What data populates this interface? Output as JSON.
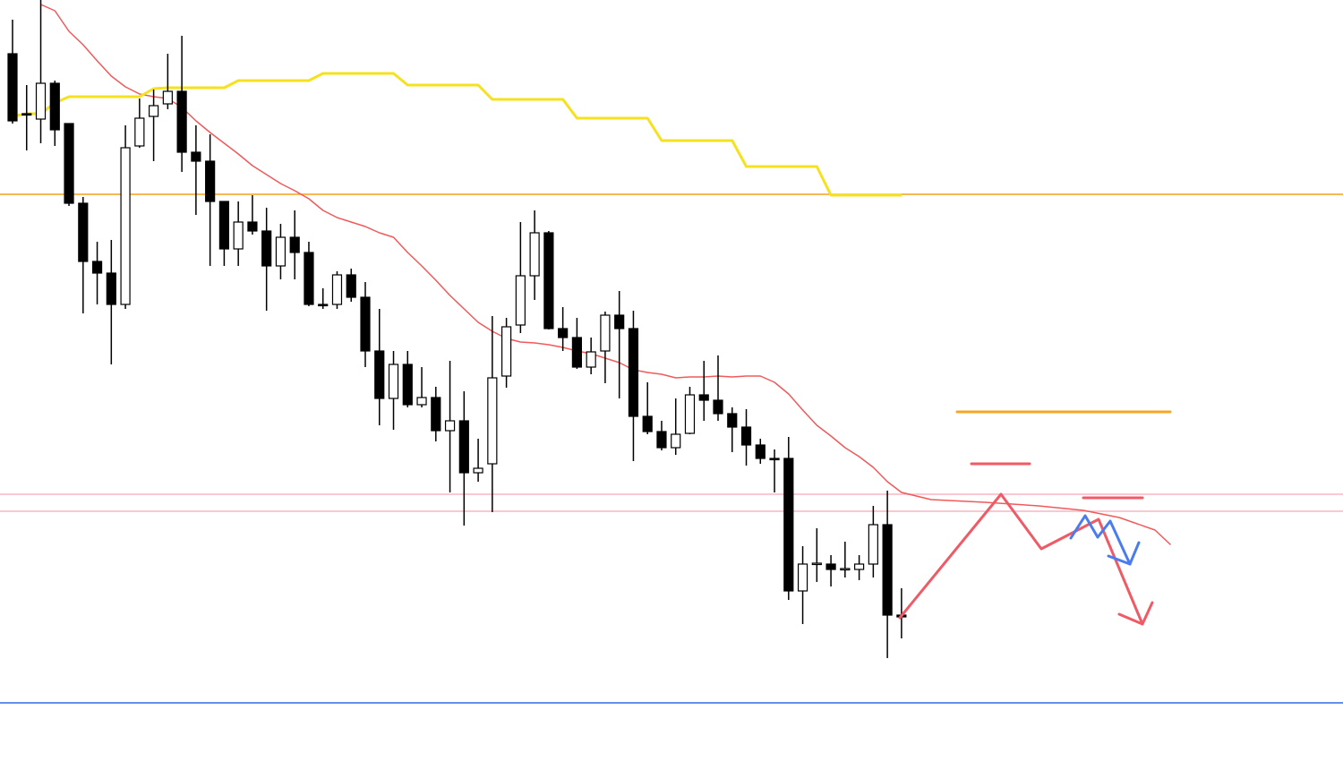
{
  "chart_data": {
    "type": "candlestick",
    "ylim": [
      0,
      860
    ],
    "up_color": "#ffffff",
    "down_color": "#000000",
    "edge_color": "#000000",
    "open": [
      800,
      733,
      727,
      767,
      722,
      633,
      568,
      555,
      520,
      697,
      730,
      744,
      758,
      690,
      680,
      635,
      582,
      612,
      602,
      563,
      595,
      578,
      520,
      520,
      553,
      528,
      468,
      415,
      453,
      408,
      416,
      379,
      390,
      332,
      342,
      440,
      497,
      552,
      600,
      493,
      483,
      450,
      468,
      508,
      493,
      395,
      378,
      360,
      376,
      419,
      413,
      398,
      383,
      363,
      348,
      348,
      200,
      230,
      230,
      224,
      224,
      230,
      274,
      173
    ],
    "high": [
      838,
      765,
      860,
      770,
      722,
      640,
      590,
      592,
      720,
      750,
      760,
      800,
      820,
      720,
      710,
      635,
      635,
      642,
      628,
      610,
      625,
      590,
      538,
      557,
      560,
      545,
      515,
      468,
      468,
      450,
      428,
      457,
      423,
      370,
      507,
      505,
      612,
      625,
      602,
      517,
      505,
      483,
      512,
      535,
      513,
      433,
      390,
      415,
      428,
      457,
      463,
      405,
      403,
      370,
      358,
      372,
      250,
      270,
      240,
      255,
      240,
      295,
      312,
      203
    ],
    "low": [
      722,
      692,
      700,
      697,
      630,
      510,
      520,
      453,
      515,
      695,
      680,
      738,
      668,
      620,
      563,
      563,
      563,
      598,
      513,
      548,
      548,
      518,
      515,
      515,
      523,
      450,
      385,
      380,
      405,
      405,
      367,
      310,
      273,
      322,
      288,
      427,
      488,
      525,
      492,
      468,
      448,
      442,
      432,
      415,
      345,
      375,
      357,
      352,
      375,
      390,
      390,
      355,
      340,
      342,
      310,
      190,
      163,
      210,
      205,
      215,
      212,
      215,
      125,
      147
    ],
    "close": [
      725,
      732,
      767,
      715,
      633,
      568,
      555,
      520,
      695,
      728,
      742,
      758,
      690,
      680,
      635,
      582,
      612,
      602,
      563,
      595,
      578,
      520,
      519,
      553,
      528,
      468,
      415,
      453,
      408,
      416,
      379,
      390,
      332,
      337,
      438,
      495,
      552,
      600,
      493,
      483,
      450,
      467,
      508,
      493,
      395,
      378,
      360,
      375,
      419,
      413,
      398,
      383,
      363,
      348,
      347,
      200,
      230,
      231,
      224,
      225,
      230,
      274,
      173,
      171
    ],
    "lines": [
      {
        "color": "#f05a5a",
        "width": 1.5,
        "values": [
          null,
          null,
          855,
          848,
          825,
          810,
          792,
          775,
          763,
          755,
          752,
          750,
          740,
          725,
          712,
          700,
          688,
          675,
          665,
          655,
          647,
          638,
          625,
          617,
          612,
          607,
          600,
          595,
          578,
          563,
          547,
          530,
          515,
          500,
          490,
          482,
          478,
          477,
          475,
          472,
          468,
          465,
          460,
          455,
          447,
          444,
          442,
          438,
          439,
          439,
          440,
          439,
          440,
          440,
          433,
          420,
          402,
          385,
          373,
          360,
          350,
          338,
          322,
          310
        ]
      },
      {
        "color": "#f5e11e",
        "width": 3,
        "values": [
          730,
          733,
          733,
          745,
          752,
          752,
          752,
          752,
          752,
          752,
          761,
          762,
          762,
          762,
          762,
          762,
          770,
          770,
          770,
          770,
          770,
          770,
          778,
          778,
          778,
          778,
          778,
          778,
          765,
          765,
          765,
          765,
          765,
          765,
          749,
          749,
          749,
          749,
          749,
          749,
          728,
          728,
          728,
          728,
          728,
          728,
          703,
          703,
          703,
          703,
          703,
          703,
          674,
          674,
          674,
          674,
          674,
          674,
          642,
          642,
          642,
          642,
          642,
          642
        ]
      }
    ],
    "levels": [
      {
        "value": 643,
        "color": "#f5a01e"
      },
      {
        "value": 308,
        "color": "#f7b5c4"
      },
      {
        "value": 289,
        "color": "#f7b5c4"
      },
      {
        "value": 75,
        "color": "#2e6be0"
      }
    ]
  }
}
